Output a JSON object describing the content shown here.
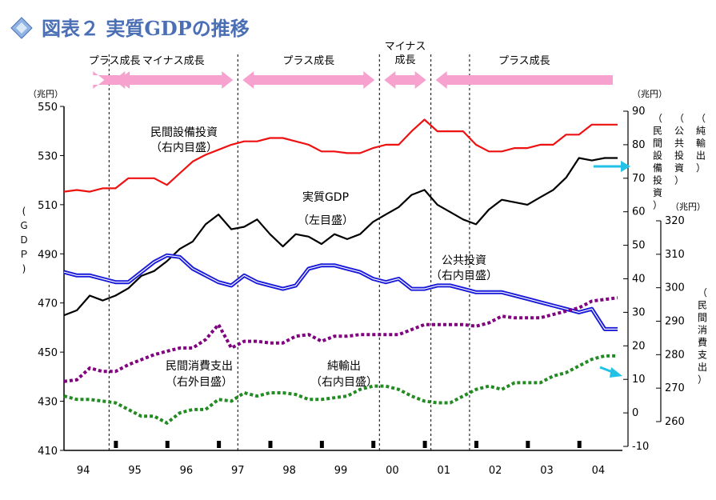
{
  "title": "図表２ 実質GDPの推移",
  "colors": {
    "title": "#4a6fb5",
    "gdp": "#000000",
    "equipment": "#ee1111",
    "public": "#1a1adb",
    "consumption": "#800080",
    "net_exports": "#228b22",
    "phase_arrow": "#f7a1cf",
    "marker_arrow": "#22c1e6"
  },
  "phases": [
    {
      "label": "プラス成長",
      "lines": [
        "プラス成長"
      ]
    },
    {
      "label": "マイナス成長",
      "lines": [
        "マイナス成長"
      ]
    },
    {
      "label": "プラス成長",
      "lines": [
        "プラス成長"
      ]
    },
    {
      "label": "マイナス成長",
      "lines": [
        "マイナス",
        "成長"
      ]
    },
    {
      "label": "プラス成長",
      "lines": [
        "プラス成長"
      ]
    }
  ],
  "axes": {
    "left": {
      "unit": "（兆円）",
      "label_chars": [
        "(",
        "Ｇ",
        "Ｄ",
        "Ｐ",
        ")"
      ],
      "ticks": [
        550,
        530,
        510,
        490,
        470,
        450,
        430,
        410
      ],
      "range": [
        410,
        550
      ]
    },
    "right_inner": {
      "unit": "（兆円）",
      "ticks": [
        90,
        80,
        70,
        60,
        50,
        40,
        30,
        20,
        10,
        0,
        -10
      ],
      "range": [
        -10,
        90
      ],
      "labels": [
        [
          "（",
          "民",
          "間",
          "設",
          "備",
          "投",
          "資",
          "）"
        ],
        [
          "（",
          "公",
          "共",
          "投",
          "資",
          "）"
        ],
        [
          "（",
          "純",
          "輸",
          "出",
          "）"
        ]
      ]
    },
    "right_outer": {
      "unit": "（兆円）",
      "ticks": [
        320,
        310,
        300,
        290,
        280,
        270,
        260
      ],
      "range": [
        260,
        320
      ],
      "label_chars": [
        "（",
        "民",
        "間",
        "消",
        "費",
        "支",
        "出",
        "）"
      ]
    },
    "x_labels": [
      "94",
      "95",
      "96",
      "97",
      "98",
      "99",
      "00",
      "01",
      "02",
      "03",
      "04"
    ]
  },
  "annotations": {
    "equipment": [
      "民間設備投資",
      "（右内目盛）"
    ],
    "gdp": [
      "実質GDP",
      "（左目盛）"
    ],
    "public": [
      "公共投資",
      "（右内目盛）"
    ],
    "consumption": [
      "民間消費支出",
      "（右外目盛）"
    ],
    "net_exports": [
      "純輸出",
      "（右内目盛）"
    ]
  },
  "chart_data": {
    "type": "line",
    "x_axis": "quarter",
    "x_start": "1994Q1",
    "x": [
      "94Q1",
      "94Q2",
      "94Q3",
      "94Q4",
      "95Q1",
      "95Q2",
      "95Q3",
      "95Q4",
      "96Q1",
      "96Q2",
      "96Q3",
      "96Q4",
      "97Q1",
      "97Q2",
      "97Q3",
      "97Q4",
      "98Q1",
      "98Q2",
      "98Q3",
      "98Q4",
      "99Q1",
      "99Q2",
      "99Q3",
      "99Q4",
      "00Q1",
      "00Q2",
      "00Q3",
      "00Q4",
      "01Q1",
      "01Q2",
      "01Q3",
      "01Q4",
      "02Q1",
      "02Q2",
      "02Q3",
      "02Q4",
      "03Q1",
      "03Q2",
      "03Q3",
      "03Q4",
      "04Q1",
      "04Q2",
      "04Q3",
      "04Q4"
    ],
    "series": [
      {
        "key": "gdp",
        "axis": "left",
        "values": [
          465,
          467,
          473,
          471,
          473,
          476,
          481,
          483,
          487,
          492,
          495,
          502,
          506,
          500,
          501,
          504,
          498,
          493,
          498,
          497,
          494,
          498,
          496,
          498,
          503,
          506,
          509,
          514,
          516,
          510,
          507,
          504,
          502,
          508,
          512,
          511,
          510,
          513,
          516,
          521,
          529,
          528,
          529,
          529
        ]
      },
      {
        "key": "equipment",
        "axis": "right_inner",
        "values": [
          66,
          66.5,
          66,
          67,
          67,
          70,
          70,
          70,
          68,
          71.5,
          75,
          77,
          78.5,
          80,
          81,
          81,
          82,
          82,
          81,
          80,
          78,
          78,
          77.5,
          77.5,
          79,
          80,
          80,
          84,
          87.5,
          84,
          84,
          84,
          80,
          78,
          78,
          79,
          79,
          80,
          80,
          83,
          83,
          86,
          86,
          86
        ]
      },
      {
        "key": "public",
        "axis": "right_inner",
        "values": [
          42,
          41,
          41,
          40,
          39,
          39,
          42,
          45,
          47,
          46.5,
          43,
          41,
          39,
          38,
          41,
          39,
          38,
          37,
          38,
          43,
          44,
          44,
          43,
          42,
          40,
          39,
          40,
          37,
          37,
          38,
          38,
          37,
          36,
          36,
          36,
          35,
          34,
          33,
          32,
          31,
          30,
          31,
          25,
          25
        ]
      },
      {
        "key": "consumption",
        "axis": "right_outer",
        "values": [
          272,
          272.5,
          276,
          275,
          275,
          277,
          278.5,
          280,
          281,
          282,
          282,
          284.5,
          289,
          282,
          284,
          284,
          283.5,
          283.5,
          285.5,
          286,
          284,
          285.5,
          285.5,
          286,
          286,
          286,
          286,
          287.5,
          289,
          289,
          289,
          289,
          288.5,
          289.5,
          291.5,
          291,
          291,
          291,
          292,
          293,
          294,
          296,
          296.5,
          297
        ]
      },
      {
        "key": "net_exports",
        "axis": "right_inner",
        "values": [
          5,
          4,
          4,
          3.5,
          3,
          1,
          -1,
          -1,
          -3,
          0,
          1,
          1,
          4,
          3.5,
          6,
          5,
          6,
          6,
          5.5,
          4,
          4,
          4.5,
          5,
          7,
          8,
          8,
          7,
          5,
          3.5,
          3,
          3,
          5,
          7,
          8,
          7,
          9,
          9,
          9,
          11,
          12,
          14,
          16,
          17,
          17
        ]
      }
    ],
    "phase_boundaries": [
      "94Q4",
      "97Q2",
      "00Q1",
      "01Q1",
      "01Q4"
    ]
  }
}
